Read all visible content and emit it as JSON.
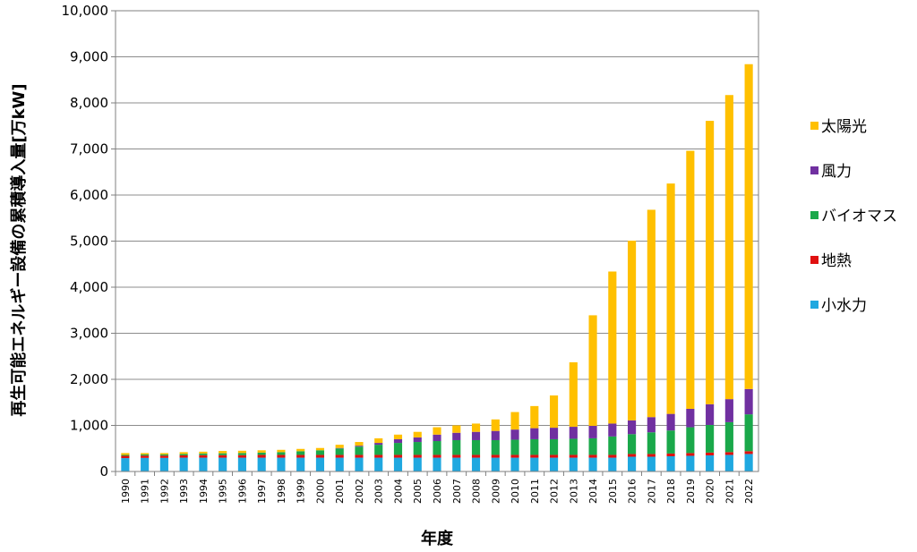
{
  "chart_data": {
    "type": "bar",
    "stacked": true,
    "title": "",
    "xlabel": "年度",
    "ylabel": "再生可能エネルギー設備の累積導入量[万kW]",
    "ylim": [
      0,
      10000
    ],
    "yticks": [
      0,
      1000,
      2000,
      3000,
      4000,
      5000,
      6000,
      7000,
      8000,
      9000,
      10000
    ],
    "ytick_labels": [
      "0",
      "1,000",
      "2,000",
      "3,000",
      "4,000",
      "5,000",
      "6,000",
      "7,000",
      "8,000",
      "9,000",
      "10,000"
    ],
    "grid": true,
    "legend_position": "right",
    "categories": [
      "1990",
      "1991",
      "1992",
      "1993",
      "1994",
      "1995",
      "1996",
      "1997",
      "1998",
      "1999",
      "2000",
      "2001",
      "2002",
      "2003",
      "2004",
      "2005",
      "2006",
      "2007",
      "2008",
      "2009",
      "2010",
      "2011",
      "2012",
      "2013",
      "2014",
      "2015",
      "2016",
      "2017",
      "2018",
      "2019",
      "2020",
      "2021",
      "2022"
    ],
    "series": [
      {
        "name": "小水力",
        "color": "#1fa8e0",
        "values": [
          290,
          295,
          295,
          300,
          300,
          300,
          300,
          300,
          300,
          300,
          300,
          300,
          300,
          300,
          300,
          300,
          300,
          300,
          300,
          300,
          300,
          300,
          300,
          300,
          300,
          300,
          320,
          320,
          330,
          340,
          350,
          360,
          380
        ]
      },
      {
        "name": "地熱",
        "color": "#e01010",
        "values": [
          50,
          50,
          50,
          50,
          55,
          55,
          55,
          60,
          60,
          60,
          60,
          60,
          60,
          60,
          60,
          60,
          60,
          60,
          60,
          60,
          60,
          60,
          60,
          60,
          60,
          60,
          60,
          60,
          60,
          60,
          60,
          60,
          60
        ]
      },
      {
        "name": "バイオマス",
        "color": "#1aa84a",
        "values": [
          20,
          25,
          25,
          30,
          35,
          40,
          45,
          50,
          60,
          80,
          100,
          140,
          180,
          220,
          260,
          280,
          300,
          320,
          320,
          320,
          330,
          340,
          340,
          350,
          360,
          400,
          430,
          470,
          500,
          560,
          600,
          650,
          800
        ]
      },
      {
        "name": "風力",
        "color": "#7030a0",
        "values": [
          0,
          0,
          0,
          0,
          0,
          0,
          0,
          0,
          0,
          0,
          0,
          10,
          20,
          40,
          80,
          100,
          140,
          160,
          180,
          200,
          220,
          240,
          250,
          260,
          270,
          280,
          300,
          330,
          360,
          400,
          450,
          500,
          550
        ]
      },
      {
        "name": "太陽光",
        "color": "#ffc000",
        "values": [
          40,
          30,
          30,
          40,
          40,
          50,
          50,
          50,
          50,
          50,
          50,
          70,
          80,
          100,
          100,
          120,
          160,
          160,
          180,
          250,
          380,
          480,
          700,
          1400,
          2400,
          3300,
          3900,
          4500,
          5000,
          5600,
          6150,
          6600,
          7050
        ]
      }
    ],
    "legend_order": [
      "太陽光",
      "風力",
      "バイオマス",
      "地熱",
      "小水力"
    ]
  }
}
